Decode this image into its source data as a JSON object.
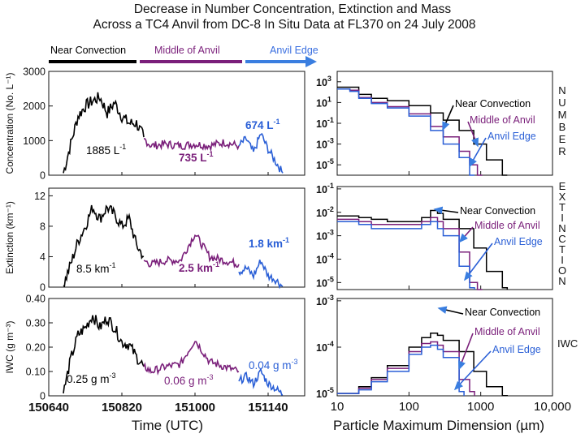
{
  "title_line1": "Decrease in Number Concentration, Extinction and Mass",
  "title_line2": "Across a TC4 Anvil from DC-8 In Situ Data at FL370 on 24 July 2008",
  "regions": [
    {
      "label": "Near Convection",
      "color": "#000000"
    },
    {
      "label": "Middle of Anvil",
      "color": "#7a1f7a"
    },
    {
      "label": "Anvil Edge",
      "color": "#3a6fe0"
    }
  ],
  "colors": {
    "near": "#000000",
    "middle": "#7a1f7a",
    "edge": "#2a5fd6",
    "arrow": "#3a7ee0"
  },
  "side_labels": [
    {
      "text": "NUMBER",
      "letters": [
        "N",
        "U",
        "M",
        "B",
        "E",
        "R"
      ]
    },
    {
      "text": "EXTINCTION",
      "letters": [
        "E",
        "X",
        "T",
        "I",
        "N",
        "C",
        "T",
        "I",
        "O",
        "N"
      ]
    },
    {
      "text": "IWC",
      "letters": [
        "IWC"
      ]
    }
  ],
  "time_axis": {
    "label": "Time (UTC)",
    "ticks": [
      "150640",
      "150820",
      "151000",
      "151140"
    ]
  },
  "size_axis": {
    "label": "Particle Maximum Dimension (µm)",
    "ticks": [
      "10",
      "100",
      "1000",
      "10,000"
    ]
  },
  "chart_data": [
    {
      "type": "line",
      "ylabel": "Concentration (No. L⁻¹)",
      "ylim": [
        0,
        3000
      ],
      "yticks": [
        "0",
        "1000",
        "2000",
        "3000"
      ],
      "x_unit": "UTC (hhmmss)",
      "series": [
        {
          "name": "Near Convection",
          "region": "near",
          "x": [
            "150700",
            "150710",
            "150720",
            "150730",
            "150740",
            "150750",
            "150800",
            "150810",
            "150820",
            "150830",
            "150840",
            "150850"
          ],
          "y": [
            60,
            900,
            1700,
            2000,
            2150,
            2250,
            1800,
            2100,
            1700,
            1500,
            1500,
            1100
          ]
        },
        {
          "name": "Middle of Anvil",
          "region": "middle",
          "x": [
            "150850",
            "150900",
            "150920",
            "150940",
            "151000",
            "151020",
            "151040",
            "151100"
          ],
          "y": [
            1050,
            850,
            900,
            850,
            900,
            850,
            950,
            850
          ]
        },
        {
          "name": "Anvil Edge",
          "region": "edge",
          "x": [
            "151100",
            "151110",
            "151120",
            "151130",
            "151140",
            "151150",
            "151200"
          ],
          "y": [
            850,
            1050,
            650,
            1200,
            750,
            400,
            60
          ]
        }
      ],
      "annotations": [
        {
          "text": "1885 L",
          "sup": "-1",
          "region": "near"
        },
        {
          "text": "735 L",
          "sup": "-1",
          "region": "middle"
        },
        {
          "text": "674 L",
          "sup": "-1",
          "region": "edge"
        }
      ]
    },
    {
      "type": "line",
      "ylabel": "Extinction (km⁻¹)",
      "ylim": [
        0,
        13
      ],
      "yticks": [
        "0",
        "4",
        "8",
        "12"
      ],
      "series": [
        {
          "name": "Near Convection",
          "region": "near",
          "x": [
            "150700",
            "150710",
            "150720",
            "150730",
            "150740",
            "150750",
            "150800",
            "150810",
            "150820",
            "150830",
            "150840",
            "150850"
          ],
          "y": [
            0.2,
            3,
            6,
            8,
            10.5,
            9,
            10.5,
            9.5,
            8,
            9,
            5.5,
            4
          ]
        },
        {
          "name": "Middle of Anvil",
          "region": "middle",
          "x": [
            "150850",
            "150900",
            "150920",
            "150940",
            "151000",
            "151020",
            "151040",
            "151100"
          ],
          "y": [
            3.5,
            3,
            3.5,
            3.5,
            7,
            4,
            3.5,
            3
          ]
        },
        {
          "name": "Anvil Edge",
          "region": "edge",
          "x": [
            "151100",
            "151110",
            "151120",
            "151130",
            "151140",
            "151150",
            "151200"
          ],
          "y": [
            2,
            2.5,
            1.5,
            3.5,
            1.5,
            1,
            0.1
          ]
        }
      ],
      "annotations": [
        {
          "text": "8.5 km",
          "sup": "-1",
          "region": "near"
        },
        {
          "text": "2.5 km",
          "sup": "-1",
          "region": "middle"
        },
        {
          "text": "1.8 km",
          "sup": "-1",
          "region": "edge"
        }
      ]
    },
    {
      "type": "line",
      "ylabel": "IWC (g m⁻³)",
      "ylim": [
        0,
        0.4
      ],
      "yticks": [
        "0",
        "0.10",
        "0.20",
        "0.30",
        "0.40"
      ],
      "series": [
        {
          "name": "Near Convection",
          "region": "near",
          "x": [
            "150700",
            "150710",
            "150720",
            "150730",
            "150740",
            "150750",
            "150800",
            "150810",
            "150820",
            "150830",
            "150840",
            "150850"
          ],
          "y": [
            0.01,
            0.15,
            0.25,
            0.28,
            0.33,
            0.28,
            0.32,
            0.28,
            0.22,
            0.21,
            0.16,
            0.12
          ]
        },
        {
          "name": "Middle of Anvil",
          "region": "middle",
          "x": [
            "150850",
            "150900",
            "150920",
            "150940",
            "151000",
            "151020",
            "151040",
            "151100"
          ],
          "y": [
            0.12,
            0.1,
            0.12,
            0.13,
            0.23,
            0.14,
            0.12,
            0.1
          ]
        },
        {
          "name": "Anvil Edge",
          "region": "edge",
          "x": [
            "151100",
            "151110",
            "151120",
            "151130",
            "151140",
            "151150",
            "151200"
          ],
          "y": [
            0.06,
            0.08,
            0.05,
            0.1,
            0.05,
            0.03,
            0.005
          ]
        }
      ],
      "annotations": [
        {
          "text": "0.25 g m",
          "sup": "-3",
          "region": "near"
        },
        {
          "text": "0.06 g m",
          "sup": "-3",
          "region": "middle"
        },
        {
          "text": "0.04 g m",
          "sup": "-3",
          "region": "edge"
        }
      ]
    },
    {
      "type": "line",
      "scale": "log-log",
      "xlim": [
        10,
        10000
      ],
      "yticks": [
        {
          "base": "10",
          "exp": "3"
        },
        {
          "base": "10",
          "exp": "1"
        },
        {
          "base": "10",
          "exp": "-1"
        },
        {
          "base": "10",
          "exp": "-3"
        },
        {
          "base": "10",
          "exp": "-5"
        }
      ],
      "ylim_exp": [
        -6,
        4
      ],
      "series": [
        {
          "name": "Near Convection",
          "region": "near",
          "x": [
            10,
            15,
            20,
            30,
            50,
            100,
            200,
            300,
            500,
            800,
            1200,
            2000
          ],
          "y": [
            300,
            300,
            60,
            25,
            15,
            5,
            1,
            0.2,
            0.02,
            0.001,
            3e-05,
            1e-06
          ]
        },
        {
          "name": "Middle of Anvil",
          "region": "middle",
          "x": [
            10,
            15,
            20,
            30,
            50,
            100,
            200,
            300,
            500,
            700,
            900
          ],
          "y": [
            200,
            150,
            30,
            10,
            4,
            0.8,
            0.05,
            0.005,
            0.0002,
            1e-05,
            1e-06
          ]
        },
        {
          "name": "Anvil Edge",
          "region": "edge",
          "x": [
            10,
            15,
            20,
            30,
            50,
            100,
            200,
            300,
            500,
            700
          ],
          "y": [
            200,
            120,
            25,
            8,
            3,
            0.5,
            0.02,
            0.001,
            5e-05,
            1e-06
          ]
        }
      ],
      "annotations": [
        {
          "text": "Near Convection",
          "region": "near"
        },
        {
          "text": "Middle of Anvil",
          "region": "middle"
        },
        {
          "text": "Anvil Edge",
          "region": "edge"
        }
      ]
    },
    {
      "type": "line",
      "scale": "log-log",
      "xlim": [
        10,
        10000
      ],
      "yticks": [
        {
          "base": "10",
          "exp": "-1"
        },
        {
          "base": "10",
          "exp": "-2"
        },
        {
          "base": "10",
          "exp": "-3"
        },
        {
          "base": "10",
          "exp": "-4"
        },
        {
          "base": "10",
          "exp": "-5"
        }
      ],
      "ylim_exp": [
        -5.3,
        -0.9
      ],
      "series": [
        {
          "name": "Near Convection",
          "region": "near",
          "x": [
            10,
            20,
            30,
            50,
            100,
            150,
            200,
            250,
            300,
            500,
            800,
            1200,
            2000
          ],
          "y": [
            0.007,
            0.006,
            0.005,
            0.004,
            0.004,
            0.006,
            0.012,
            0.009,
            0.005,
            0.002,
            0.0003,
            3e-05,
            6e-06
          ]
        },
        {
          "name": "Middle of Anvil",
          "region": "middle",
          "x": [
            10,
            20,
            30,
            50,
            100,
            150,
            200,
            250,
            300,
            500,
            700,
            900
          ],
          "y": [
            0.005,
            0.004,
            0.003,
            0.003,
            0.003,
            0.004,
            0.006,
            0.004,
            0.002,
            0.0002,
            1e-05,
            5e-06
          ]
        },
        {
          "name": "Anvil Edge",
          "region": "edge",
          "x": [
            10,
            20,
            30,
            50,
            100,
            150,
            200,
            250,
            300,
            500,
            700
          ],
          "y": [
            0.004,
            0.003,
            0.002,
            0.002,
            0.002,
            0.003,
            0.004,
            0.002,
            0.001,
            5e-05,
            6e-06
          ]
        }
      ],
      "annotations": [
        {
          "text": "Near Convection",
          "region": "near"
        },
        {
          "text": "Middle of Anvil",
          "region": "middle"
        },
        {
          "text": "Anvil Edge",
          "region": "edge"
        }
      ]
    },
    {
      "type": "line",
      "scale": "log-log",
      "xlim": [
        10,
        10000
      ],
      "yticks": [
        {
          "base": "10",
          "exp": "-3"
        },
        {
          "base": "10",
          "exp": "-4"
        },
        {
          "base": "10",
          "exp": "-5"
        }
      ],
      "ylim_exp": [
        -5.05,
        -2.95
      ],
      "series": [
        {
          "name": "Near Convection",
          "region": "near",
          "x": [
            10,
            20,
            30,
            50,
            100,
            150,
            200,
            250,
            300,
            500,
            800,
            1200,
            2000
          ],
          "y": [
            1e-05,
            1.4e-05,
            2.2e-05,
            4e-05,
            0.0001,
            0.00016,
            0.0002,
            0.00018,
            0.00014,
            8e-05,
            3e-05,
            1.4e-05,
            9e-06
          ]
        },
        {
          "name": "Middle of Anvil",
          "region": "middle",
          "x": [
            10,
            20,
            30,
            50,
            100,
            150,
            200,
            250,
            300,
            500,
            700
          ],
          "y": [
            1e-05,
            1.3e-05,
            2e-05,
            3.5e-05,
            8e-05,
            0.00012,
            0.00013,
            0.00011,
            8e-05,
            2e-05,
            1.1e-05
          ]
        },
        {
          "name": "Anvil Edge",
          "region": "edge",
          "x": [
            10,
            20,
            30,
            50,
            100,
            150,
            200,
            250,
            300,
            500
          ],
          "y": [
            1e-05,
            1.2e-05,
            1.8e-05,
            3e-05,
            7e-05,
            0.0001,
            0.00011,
            9e-05,
            6e-05,
            1.1e-05
          ]
        }
      ],
      "annotations": [
        {
          "text": "Near Convection",
          "region": "near"
        },
        {
          "text": "Middle of Anvil",
          "region": "middle"
        },
        {
          "text": "Anvil Edge",
          "region": "edge"
        }
      ]
    }
  ]
}
